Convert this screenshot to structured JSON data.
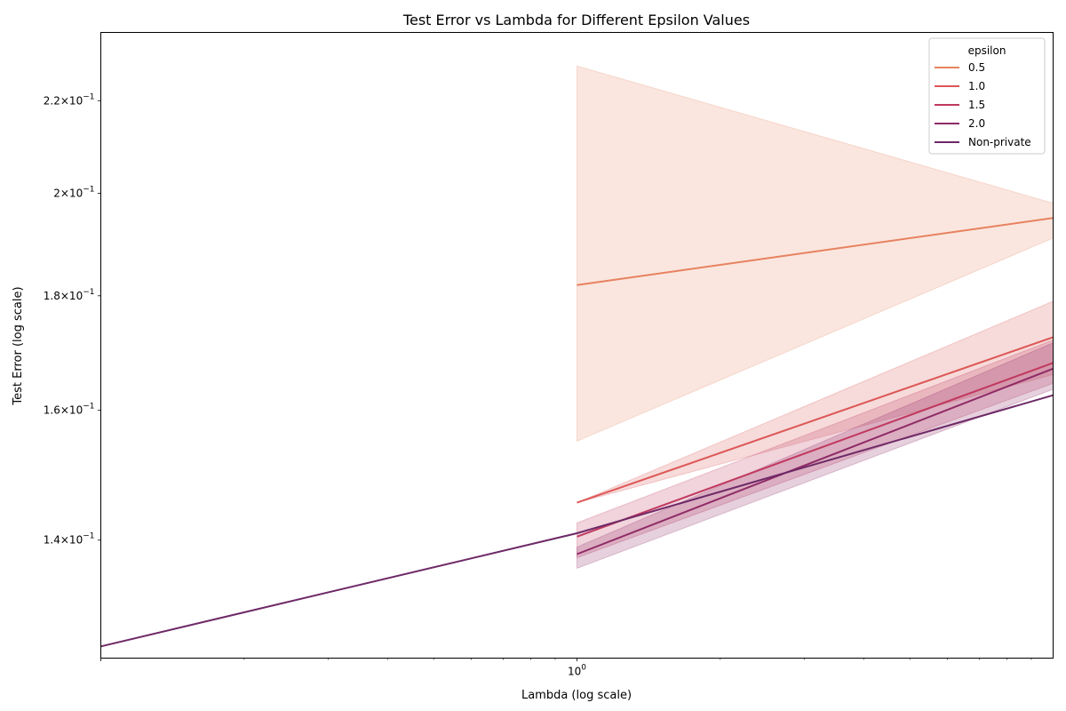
{
  "chart_data": {
    "type": "line",
    "title": "Test Error vs Lambda for Different Epsilon Values",
    "xlabel": "Lambda (log scale)",
    "ylabel": "Test Error (log scale)",
    "xscale": "log",
    "yscale": "log",
    "xlim": [
      0.1,
      10
    ],
    "ylim": [
      0.124,
      0.236
    ],
    "grid": false,
    "x_ticks": [
      {
        "value": 1,
        "base": "10",
        "exp": "0"
      }
    ],
    "y_ticks": [
      {
        "value": 0.14,
        "mantissa": "1.4",
        "base": "10",
        "exp": "−1"
      },
      {
        "value": 0.16,
        "mantissa": "1.6",
        "base": "10",
        "exp": "−1"
      },
      {
        "value": 0.18,
        "mantissa": "1.8",
        "base": "10",
        "exp": "−1"
      },
      {
        "value": 0.2,
        "mantissa": "2",
        "base": "10",
        "exp": "−1"
      },
      {
        "value": 0.22,
        "mantissa": "2.2",
        "base": "10",
        "exp": "−1"
      }
    ],
    "legend": {
      "title": "epsilon",
      "position": "top-right"
    },
    "series": [
      {
        "name": "0.5",
        "color": "#e8825f",
        "x": [
          1,
          10
        ],
        "y": [
          0.182,
          0.195
        ],
        "ci_lower": [
          0.155,
          0.191
        ],
        "ci_upper": [
          0.228,
          0.198
        ]
      },
      {
        "name": "1.0",
        "color": "#dc5756",
        "x": [
          1,
          10
        ],
        "y": [
          0.1455,
          0.1725
        ],
        "ci_lower": [
          0.1455,
          0.166
        ],
        "ci_upper": [
          0.1455,
          0.179
        ]
      },
      {
        "name": "1.5",
        "color": "#c0395f",
        "x": [
          1,
          10
        ],
        "y": [
          0.1405,
          0.168
        ],
        "ci_lower": [
          0.1375,
          0.1645
        ],
        "ci_upper": [
          0.1425,
          0.172
        ]
      },
      {
        "name": "2.0",
        "color": "#8f2a66",
        "x": [
          1,
          10
        ],
        "y": [
          0.138,
          0.167
        ],
        "ci_lower": [
          0.136,
          0.1635
        ],
        "ci_upper": [
          0.139,
          0.1715
        ]
      },
      {
        "name": "Non-private",
        "color": "#6e2967",
        "x": [
          0.1,
          1,
          10
        ],
        "y": [
          0.1255,
          0.141,
          0.1625
        ],
        "ci_lower": null,
        "ci_upper": null
      }
    ]
  }
}
